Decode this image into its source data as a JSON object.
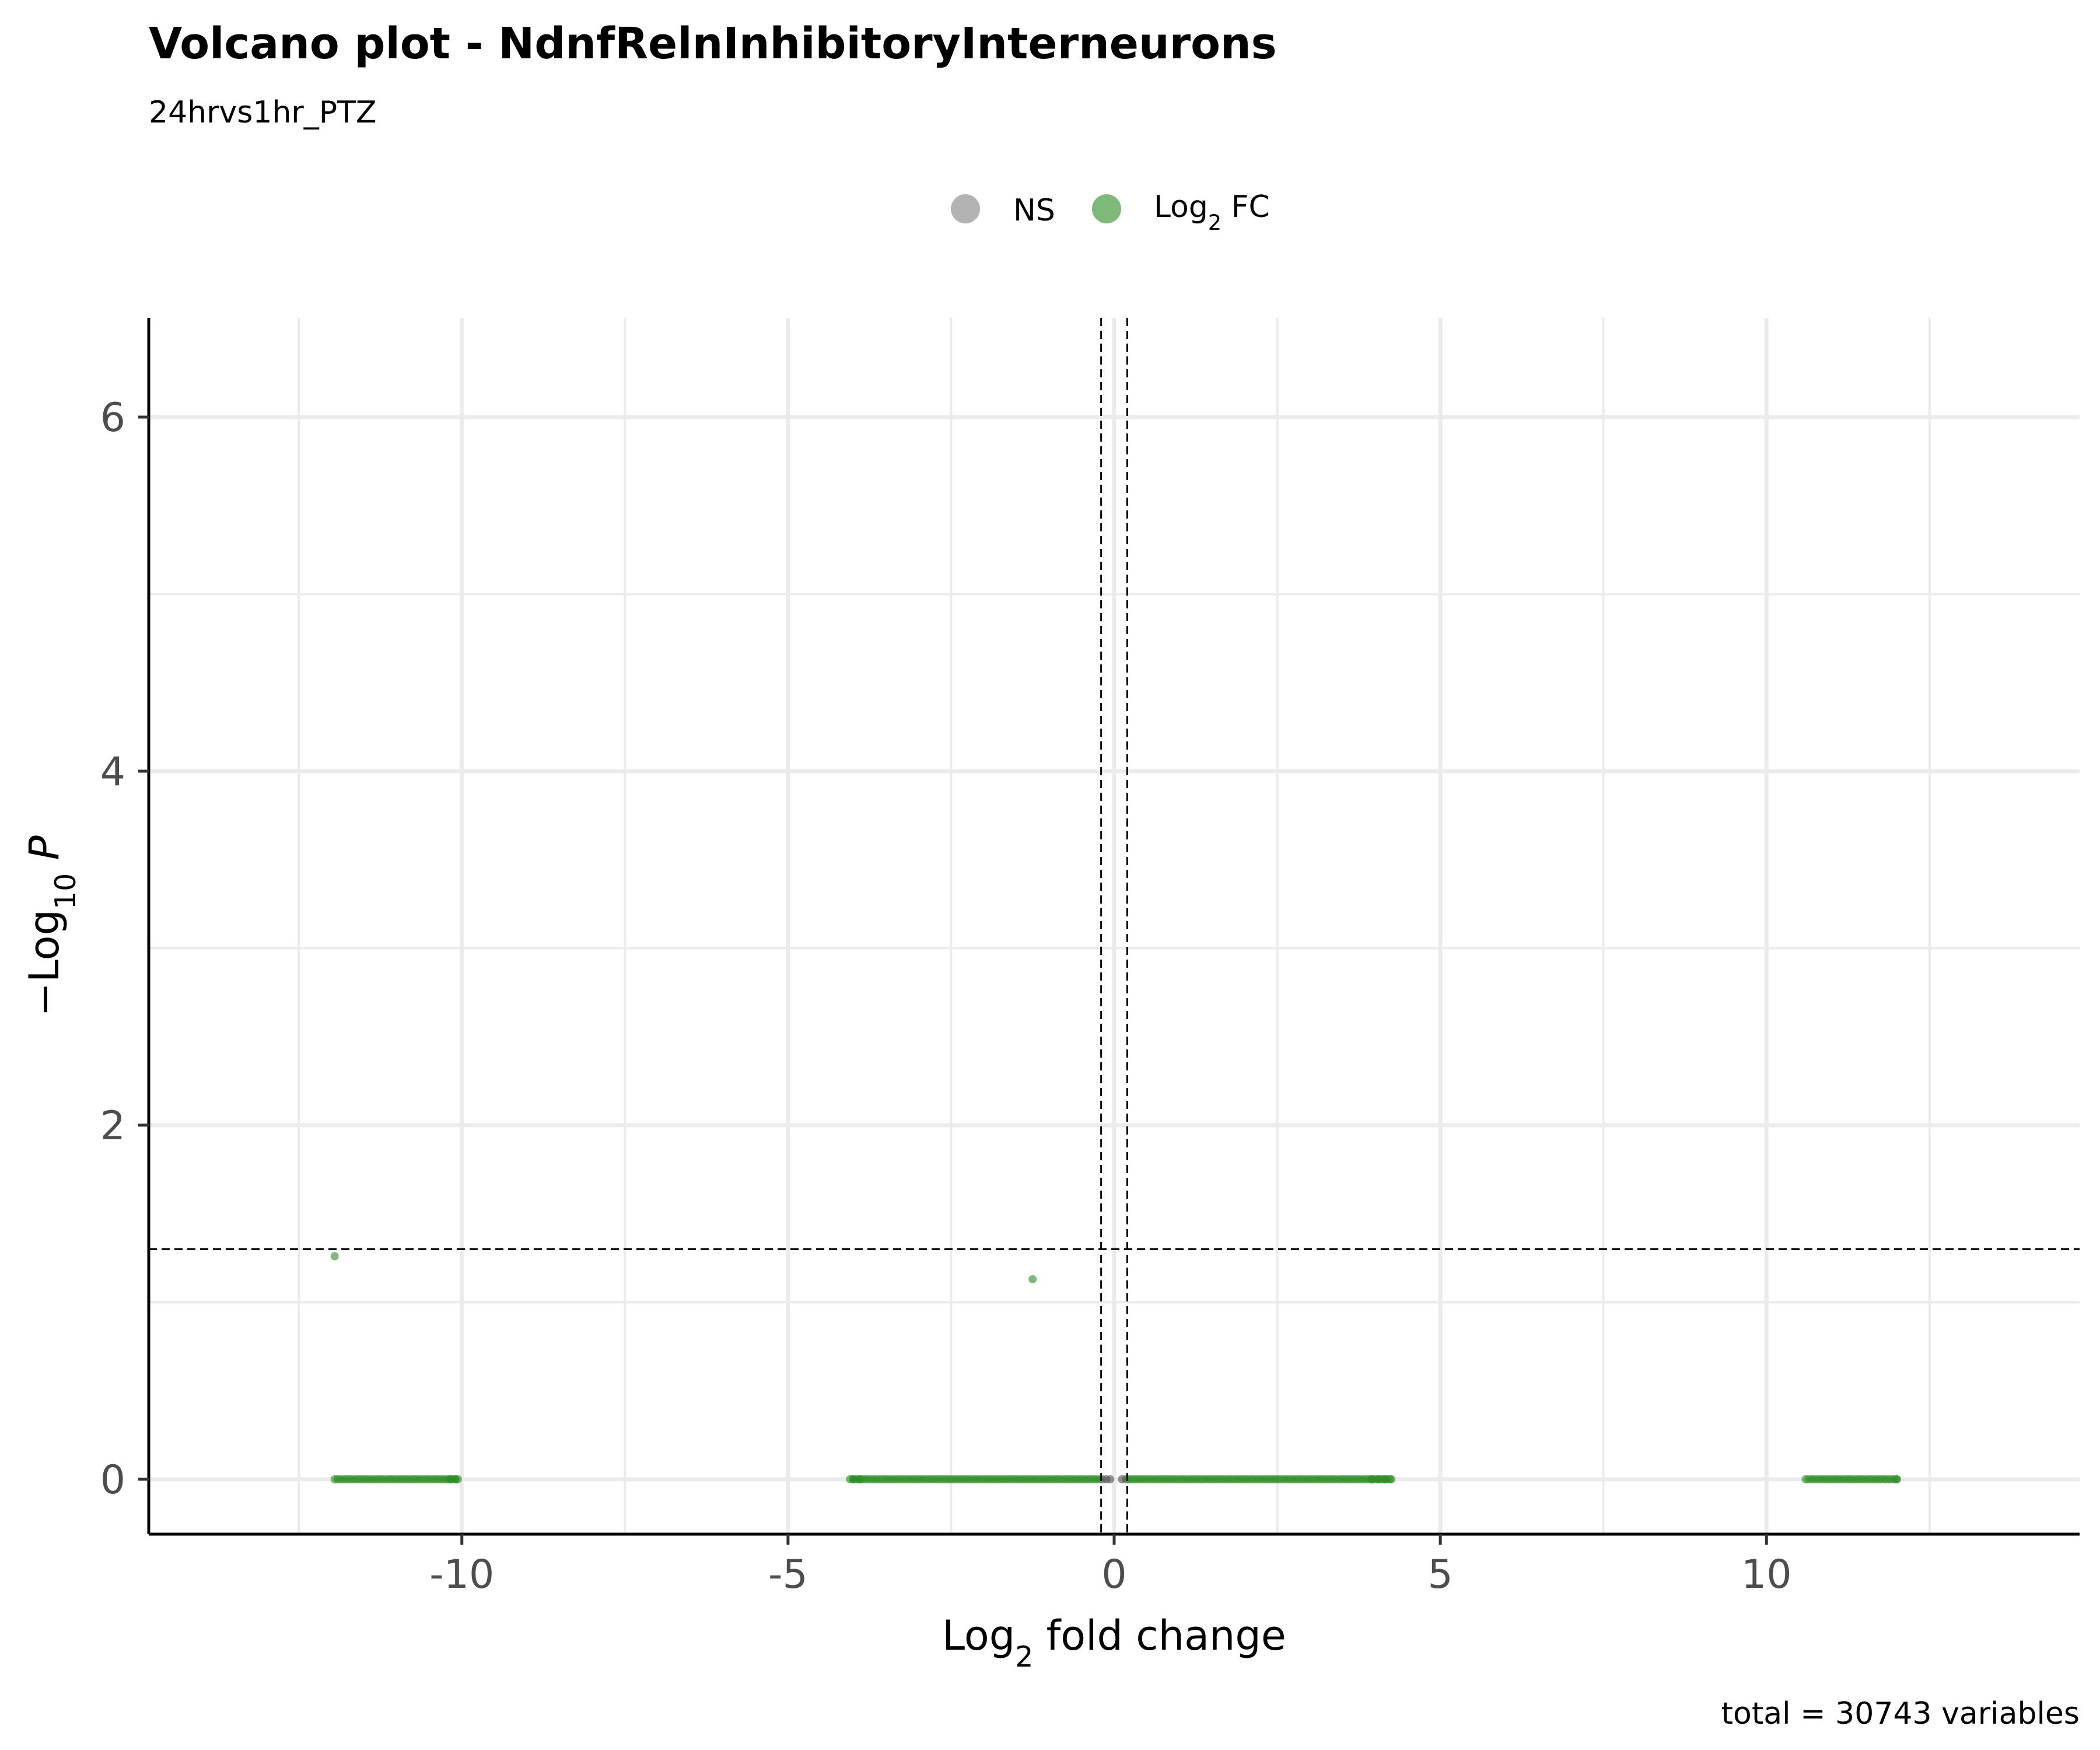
{
  "chart_data": {
    "type": "scatter",
    "title": "Volcano plot - NdnfRelnInhibitoryInterneurons",
    "subtitle": "24hrvs1hr_PTZ",
    "xlabel": {
      "prefix": "Log",
      "sub": "2",
      "suffix": " fold change"
    },
    "ylabel": {
      "prefix": "−Log",
      "sub": "10",
      "suffix": " P"
    },
    "xlim": [
      -14.8,
      14.8
    ],
    "ylim": [
      -0.31,
      6.56
    ],
    "x_ticks": [
      -10,
      -5,
      0,
      5,
      10
    ],
    "x_tick_labels": [
      "-10",
      "-5",
      "0",
      "5",
      "10"
    ],
    "y_ticks": [
      0,
      2,
      4,
      6
    ],
    "y_tick_labels": [
      "0",
      "2",
      "4",
      "6"
    ],
    "grid": true,
    "legend_position": "top",
    "legend": [
      {
        "key": "NS",
        "text": "NS",
        "color": "#808080"
      },
      {
        "key": "FC",
        "prefix": "Log",
        "sub": "2",
        "suffix": " FC",
        "color": "#2a8b22"
      }
    ],
    "cutoffs": {
      "fold_change": [
        -0.2,
        0.2
      ],
      "neg_log10_p": 1.3
    },
    "caption": "total = 30743 variables",
    "series": [
      {
        "key": "NS",
        "color": "#505050",
        "points": [
          [
            -0.18,
            0
          ],
          [
            -0.12,
            0
          ],
          [
            -0.06,
            0
          ],
          [
            0.12,
            0
          ],
          [
            0.18,
            0
          ]
        ]
      },
      {
        "key": "FC",
        "color": "#2a8b22",
        "bands": [
          {
            "x_range": [
              -11.95,
              -10.05
            ],
            "y": 0
          },
          {
            "x_range": [
              -4.05,
              -0.22
            ],
            "y": 0
          },
          {
            "x_range": [
              0.22,
              4.25
            ],
            "y": 0
          },
          {
            "x_range": [
              10.6,
              12.0
            ],
            "y": 0
          }
        ],
        "points": [
          [
            -11.95,
            1.26
          ],
          [
            -1.25,
            1.13
          ],
          [
            -10.1,
            0
          ],
          [
            -10.18,
            0
          ],
          [
            -4.0,
            0
          ],
          [
            -3.9,
            0
          ],
          [
            3.95,
            0
          ],
          [
            4.05,
            0
          ],
          [
            4.15,
            0
          ],
          [
            4.25,
            0
          ],
          [
            12.0,
            0
          ]
        ]
      }
    ]
  }
}
